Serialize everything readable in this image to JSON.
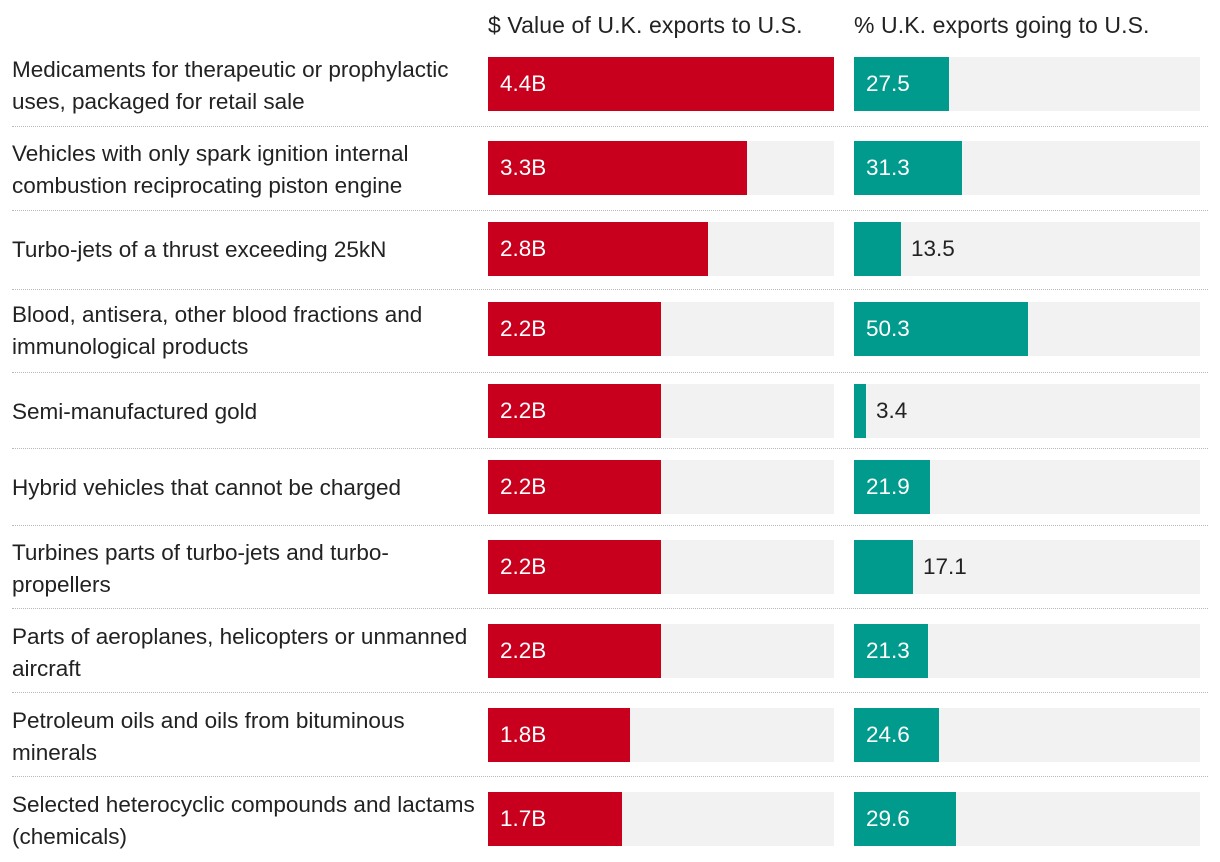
{
  "chart_data": {
    "type": "bar",
    "orientation": "horizontal",
    "categories": [
      "Medicaments for therapeutic or prophylactic uses, packaged for retail sale",
      "Vehicles with only spark ignition internal combustion reciprocating piston engine",
      "Turbo-jets of a thrust exceeding 25kN",
      "Blood, antisera, other blood fractions and immunological products",
      "Semi-manufactured gold",
      "Hybrid vehicles that cannot be charged",
      "Turbines parts of turbo-jets and turbo-propellers",
      "Parts of aeroplanes, helicopters or unmanned aircraft",
      "Petroleum oils and oils from bituminous minerals",
      "Selected heterocyclic compounds and lactams (chemicals)"
    ],
    "series": [
      {
        "name": "$ Value of U.K. exports to U.S.",
        "color": "#c8001e",
        "values": [
          4.4,
          3.3,
          2.8,
          2.2,
          2.2,
          2.2,
          2.2,
          2.2,
          1.8,
          1.7
        ],
        "labels": [
          "4.4B",
          "3.3B",
          "2.8B",
          "2.2B",
          "2.2B",
          "2.2B",
          "2.2B",
          "2.2B",
          "1.8B",
          "1.7B"
        ],
        "max": 4.4
      },
      {
        "name": "% U.K. exports going to U.S.",
        "color": "#009b8c",
        "values": [
          27.5,
          31.3,
          13.5,
          50.3,
          3.4,
          21.9,
          17.1,
          21.3,
          24.6,
          29.6
        ],
        "labels": [
          "27.5",
          "31.3",
          "13.5",
          "50.3",
          "3.4",
          "21.9",
          "17.1",
          "21.3",
          "24.6",
          "29.6"
        ],
        "max": 100
      }
    ],
    "track_color": "#f2f2f2"
  }
}
